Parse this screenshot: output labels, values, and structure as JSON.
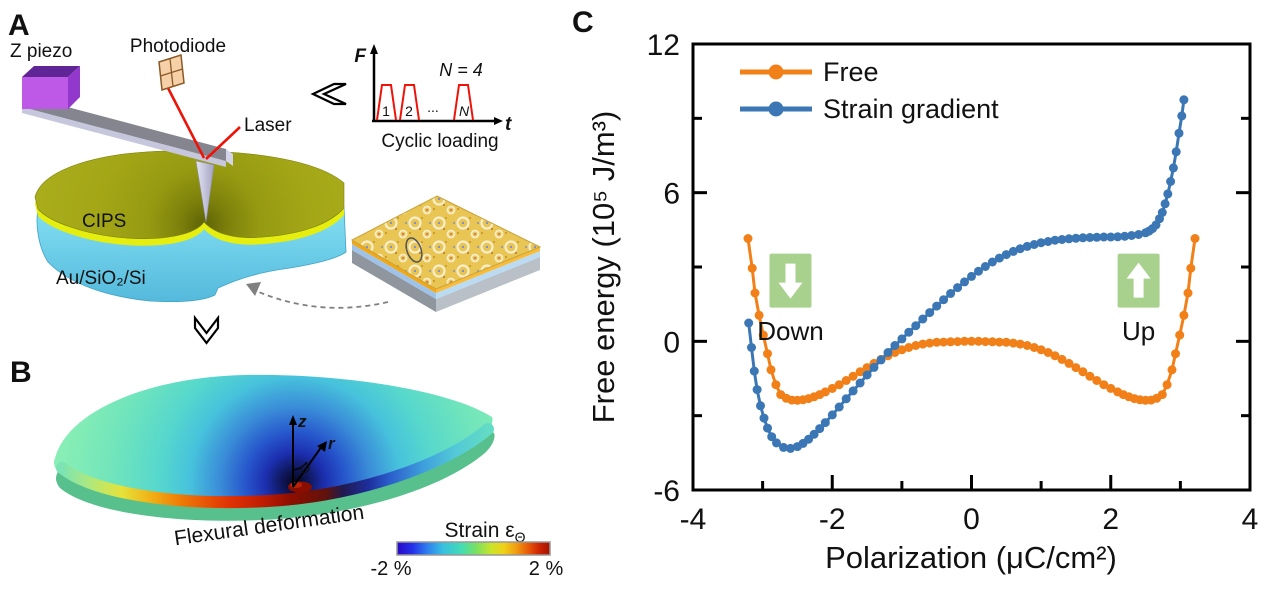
{
  "panel_a": {
    "label": "A",
    "z_piezo_label": "Z piezo",
    "photodiode_label": "Photodiode",
    "laser_label": "Laser",
    "cips_label": "CIPS",
    "substrate_label": "Au/SiO₂/Si",
    "inset": {
      "f_axis": "F",
      "t_axis": "t",
      "n_equals": "N = 4",
      "pulse_labels": [
        "1",
        "2",
        "...",
        "N"
      ],
      "caption": "Cyclic loading"
    }
  },
  "panel_b": {
    "label": "B",
    "caption": "Flexural deformation",
    "axis_z": "z",
    "axis_r": "r",
    "axis_theta": "Θ",
    "colorbar": {
      "title_base": "Strain ε",
      "title_sub": "Θ",
      "min": "-2 %",
      "max": "2 %"
    }
  },
  "panel_c": {
    "label": "C"
  },
  "colors": {
    "free_orange": "#F28019",
    "strain_blue": "#3B76B5",
    "annotation_green": "#A9D18E",
    "laser_red": "#EE1308",
    "cips_olive": "#A4A716",
    "cips_yellow_edge": "#E6EE10",
    "substrate_cyan": "#6FD2E8",
    "piezo_purple": "#BE58E6"
  },
  "chart_data": {
    "type": "line",
    "title": "",
    "xlabel": "Polarization (μC/cm²)",
    "ylabel": "Free energy (10⁵ J/m³)",
    "xlim": [
      -4,
      4
    ],
    "ylim": [
      -6,
      12
    ],
    "xticks": [
      -4,
      -2,
      0,
      2,
      4
    ],
    "yticks": [
      -6,
      0,
      6,
      12
    ],
    "xminor": [
      -3,
      -1,
      1,
      3
    ],
    "yminor": [
      -3,
      3,
      9
    ],
    "grid": false,
    "legend_position": "top-left-inside",
    "series": [
      {
        "name": "Free",
        "color": "#F28019",
        "x": [
          -3.21,
          -3.15,
          -3.11,
          -3.05,
          -2.99,
          -2.93,
          -2.88,
          -2.81,
          -2.74,
          -2.66,
          -2.58,
          -2.5,
          -2.42,
          -2.34,
          -2.26,
          -2.18,
          -2.1,
          -2,
          -1.9,
          -1.8,
          -1.7,
          -1.6,
          -1.5,
          -1.4,
          -1.3,
          -1.2,
          -1.1,
          -1,
          -0.9,
          -0.8,
          -0.7,
          -0.6,
          -0.5,
          -0.4,
          -0.3,
          -0.2,
          -0.1,
          0,
          0.1,
          0.2,
          0.3,
          0.4,
          0.5,
          0.6,
          0.7,
          0.8,
          0.9,
          1,
          1.1,
          1.2,
          1.3,
          1.4,
          1.5,
          1.6,
          1.7,
          1.8,
          1.9,
          2,
          2.1,
          2.18,
          2.26,
          2.34,
          2.42,
          2.5,
          2.58,
          2.66,
          2.74,
          2.81,
          2.88,
          2.93,
          2.99,
          3.05,
          3.11,
          3.15,
          3.21
        ],
        "y": [
          4.15,
          2.95,
          1.95,
          1.05,
          0.25,
          -0.5,
          -1.15,
          -1.75,
          -2.15,
          -2.3,
          -2.37,
          -2.38,
          -2.36,
          -2.31,
          -2.24,
          -2.15,
          -2.04,
          -1.9,
          -1.75,
          -1.58,
          -1.41,
          -1.23,
          -1.06,
          -0.89,
          -0.73,
          -0.58,
          -0.45,
          -0.34,
          -0.25,
          -0.17,
          -0.11,
          -0.07,
          -0.04,
          -0.03,
          -0.02,
          -0.01,
          0,
          0,
          0,
          -0.01,
          -0.02,
          -0.03,
          -0.04,
          -0.07,
          -0.11,
          -0.17,
          -0.25,
          -0.34,
          -0.45,
          -0.58,
          -0.73,
          -0.89,
          -1.06,
          -1.23,
          -1.41,
          -1.58,
          -1.75,
          -1.9,
          -2.04,
          -2.15,
          -2.24,
          -2.31,
          -2.36,
          -2.38,
          -2.37,
          -2.3,
          -2.15,
          -1.75,
          -1.15,
          -0.5,
          0.25,
          1.05,
          1.95,
          2.95,
          4.15
        ]
      },
      {
        "name": "Strain gradient",
        "color": "#3B76B5",
        "x": [
          -3.2,
          -3.16,
          -3.12,
          -3.08,
          -3.03,
          -2.98,
          -2.93,
          -2.87,
          -2.8,
          -2.7,
          -2.6,
          -2.5,
          -2.42,
          -2.34,
          -2.26,
          -2.18,
          -2.1,
          -2,
          -1.9,
          -1.8,
          -1.7,
          -1.6,
          -1.5,
          -1.4,
          -1.3,
          -1.2,
          -1.1,
          -1,
          -0.9,
          -0.8,
          -0.7,
          -0.6,
          -0.5,
          -0.4,
          -0.3,
          -0.2,
          -0.1,
          0,
          0.1,
          0.2,
          0.3,
          0.4,
          0.5,
          0.6,
          0.7,
          0.8,
          0.9,
          1,
          1.1,
          1.2,
          1.3,
          1.4,
          1.5,
          1.6,
          1.7,
          1.8,
          1.9,
          2,
          2.1,
          2.2,
          2.3,
          2.4,
          2.5,
          2.55,
          2.6,
          2.65,
          2.7,
          2.74,
          2.78,
          2.82,
          2.86,
          2.9,
          2.94,
          2.98,
          3.02,
          3.05
        ],
        "y": [
          0.74,
          -0.25,
          -1.2,
          -1.95,
          -2.6,
          -3.1,
          -3.5,
          -3.85,
          -4.1,
          -4.28,
          -4.32,
          -4.25,
          -4.12,
          -3.95,
          -3.75,
          -3.52,
          -3.28,
          -2.97,
          -2.65,
          -2.32,
          -2,
          -1.68,
          -1.36,
          -1.05,
          -0.75,
          -0.45,
          -0.17,
          0.1,
          0.37,
          0.63,
          0.9,
          1.16,
          1.42,
          1.68,
          1.93,
          2.17,
          2.4,
          2.62,
          2.83,
          3.02,
          3.2,
          3.36,
          3.5,
          3.63,
          3.74,
          3.83,
          3.91,
          3.98,
          4.03,
          4.08,
          4.11,
          4.14,
          4.16,
          4.18,
          4.19,
          4.2,
          4.21,
          4.21,
          4.22,
          4.24,
          4.27,
          4.31,
          4.38,
          4.45,
          4.55,
          4.7,
          4.95,
          5.2,
          5.55,
          5.95,
          6.45,
          7,
          7.65,
          8.4,
          9.1,
          9.75
        ]
      }
    ],
    "annotations": [
      {
        "text": "Down",
        "arrow": "down",
        "x": -2.6,
        "box_e": 2.45,
        "text_e": 0.05
      },
      {
        "text": "Up",
        "arrow": "up",
        "x": 2.4,
        "box_e": 2.45,
        "text_e": 0.05
      }
    ]
  }
}
